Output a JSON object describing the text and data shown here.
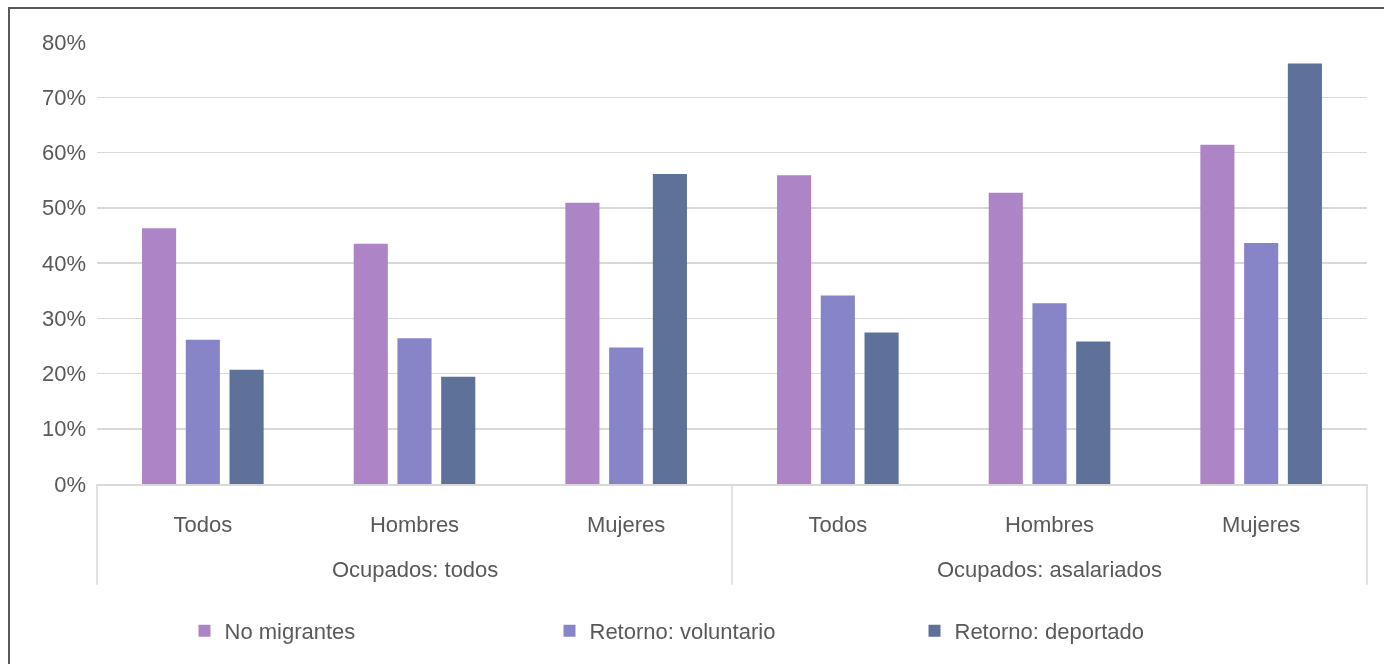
{
  "chart_data": {
    "type": "bar",
    "categories": [
      "Todos",
      "Hombres",
      "Mujeres",
      "Todos",
      "Hombres",
      "Mujeres"
    ],
    "annotations": [
      "Ocupados: todos",
      "Ocupados: asalariados"
    ],
    "series": [
      {
        "name": "No migrantes",
        "color": "#ad84c6",
        "values": [
          46.3,
          43.5,
          50.9,
          55.9,
          52.7,
          61.4
        ]
      },
      {
        "name": "Retorno: voluntario",
        "color": "#8784c7",
        "values": [
          26.1,
          26.4,
          24.7,
          34.1,
          32.7,
          43.6
        ]
      },
      {
        "name": "Retorno: deportado",
        "color": "#5e7198",
        "values": [
          20.7,
          19.4,
          56.1,
          27.4,
          25.8,
          76.1
        ]
      }
    ],
    "ylim": [
      0,
      80
    ],
    "yticks": [
      {
        "value": 0,
        "label": "0%"
      },
      {
        "value": 10,
        "label": "10%"
      },
      {
        "value": 20,
        "label": "20%"
      },
      {
        "value": 30,
        "label": "30%"
      },
      {
        "value": 40,
        "label": "40%"
      },
      {
        "value": 50,
        "label": "50%"
      },
      {
        "value": 60,
        "label": "60%"
      },
      {
        "value": 70,
        "label": "70%"
      },
      {
        "value": 80,
        "label": "80%"
      }
    ],
    "grid": "y",
    "legend": "bottom"
  }
}
